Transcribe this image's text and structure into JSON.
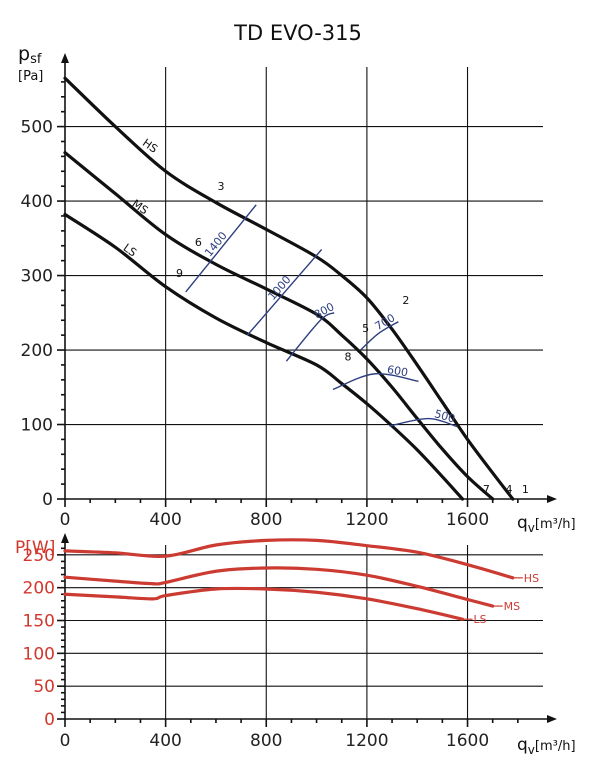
{
  "chart_data": [
    {
      "type": "line",
      "title": "TD EVO-315",
      "ylabel_main": "p",
      "ylabel_sub": "sf",
      "ylabel_unit": "[Pa]",
      "xlabel_main": "q",
      "xlabel_sub": "v",
      "xlabel_unit": "[m³/h]",
      "xlim": [
        0,
        1900
      ],
      "ylim": [
        0,
        580
      ],
      "xticks": [
        0,
        400,
        800,
        1200,
        1600
      ],
      "yticks": [
        0,
        100,
        200,
        300,
        400,
        500
      ],
      "grid": true,
      "series": [
        {
          "name": "HS",
          "x": [
            0,
            200,
            400,
            600,
            800,
            1000,
            1100,
            1200,
            1300,
            1400,
            1500,
            1600,
            1700,
            1780
          ],
          "y": [
            565,
            500,
            440,
            398,
            362,
            325,
            300,
            270,
            228,
            180,
            130,
            80,
            35,
            0
          ]
        },
        {
          "name": "MS",
          "x": [
            0,
            200,
            400,
            600,
            800,
            1000,
            1100,
            1200,
            1300,
            1400,
            1500,
            1600,
            1700
          ],
          "y": [
            465,
            410,
            355,
            315,
            282,
            248,
            220,
            188,
            150,
            108,
            67,
            30,
            0
          ]
        },
        {
          "name": "LS",
          "x": [
            0,
            200,
            400,
            600,
            800,
            1000,
            1100,
            1200,
            1300,
            1400,
            1500,
            1580
          ],
          "y": [
            382,
            338,
            285,
            243,
            210,
            180,
            155,
            128,
            98,
            66,
            30,
            0
          ]
        }
      ],
      "series_labels": [
        {
          "text": "HS",
          "x": 330,
          "y": 470
        },
        {
          "text": "MS",
          "x": 290,
          "y": 388
        },
        {
          "text": "LS",
          "x": 250,
          "y": 330
        }
      ],
      "points": [
        {
          "label": "1",
          "x": 1830,
          "y": 8
        },
        {
          "label": "2",
          "x": 1355,
          "y": 262
        },
        {
          "label": "3",
          "x": 620,
          "y": 415
        },
        {
          "label": "4",
          "x": 1765,
          "y": 8
        },
        {
          "label": "5",
          "x": 1195,
          "y": 224
        },
        {
          "label": "6",
          "x": 530,
          "y": 340
        },
        {
          "label": "7",
          "x": 1675,
          "y": 8
        },
        {
          "label": "8",
          "x": 1125,
          "y": 186
        },
        {
          "label": "9",
          "x": 455,
          "y": 298
        }
      ],
      "iso_lines": [
        {
          "label": "1400",
          "x": [
            480,
            760
          ],
          "y": [
            278,
            395
          ]
        },
        {
          "label": "1000",
          "x": [
            725,
            1020
          ],
          "y": [
            220,
            335
          ]
        },
        {
          "label": "800",
          "x": [
            880,
            1015,
            1070
          ],
          "y": [
            185,
            240,
            250
          ]
        },
        {
          "label": "700",
          "x": [
            1175,
            1245,
            1325
          ],
          "y": [
            200,
            222,
            238
          ]
        },
        {
          "label": "600",
          "x": [
            1065,
            1230,
            1405
          ],
          "y": [
            147,
            168,
            158
          ]
        },
        {
          "label": "500",
          "x": [
            1290,
            1445,
            1560
          ],
          "y": [
            98,
            108,
            97
          ]
        }
      ]
    },
    {
      "type": "line",
      "ylabel": "P[W]",
      "xlabel_main": "q",
      "xlabel_sub": "v",
      "xlabel_unit": "[m³/h]",
      "xlim": [
        0,
        1900
      ],
      "ylim": [
        0,
        265
      ],
      "xticks": [
        0,
        400,
        800,
        1200,
        1600
      ],
      "yticks": [
        0,
        50,
        100,
        150,
        200,
        250
      ],
      "grid": true,
      "series": [
        {
          "name": "HS",
          "x": [
            0,
            200,
            400,
            600,
            800,
            1000,
            1200,
            1400,
            1600,
            1780
          ],
          "y": [
            256,
            253,
            248,
            265,
            272,
            272,
            264,
            254,
            235,
            215
          ]
        },
        {
          "name": "MS",
          "x": [
            0,
            200,
            350,
            400,
            600,
            800,
            1000,
            1200,
            1400,
            1600,
            1700
          ],
          "y": [
            216,
            210,
            206,
            208,
            225,
            230,
            228,
            219,
            202,
            182,
            172
          ]
        },
        {
          "name": "LS",
          "x": [
            0,
            200,
            350,
            400,
            600,
            800,
            1000,
            1200,
            1400,
            1580
          ],
          "y": [
            190,
            186,
            183,
            188,
            198,
            198,
            193,
            183,
            168,
            152
          ]
        }
      ]
    }
  ]
}
